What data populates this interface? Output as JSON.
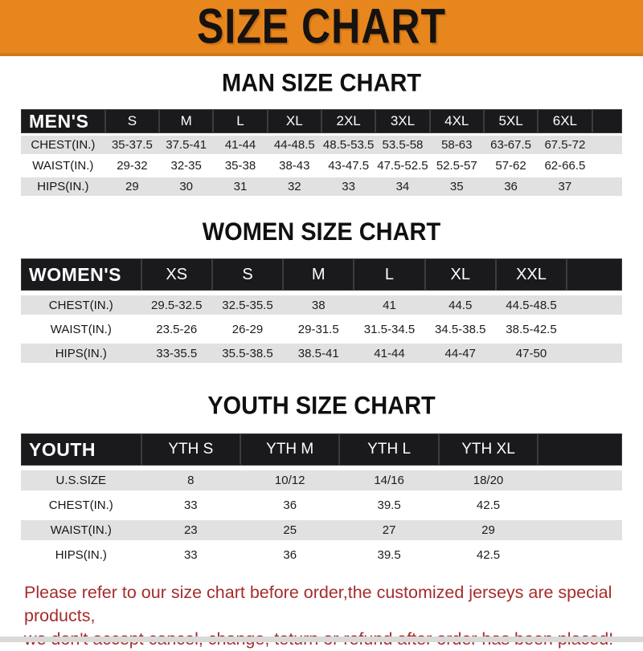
{
  "banner": {
    "title": "SIZE CHART",
    "bg_color": "#E8861E"
  },
  "colors": {
    "header_bar": "#1a1a1c",
    "row_stripe": "#E1E1E2",
    "notice_text": "#A62B2B"
  },
  "charts": [
    {
      "id": "men",
      "heading": "MAN SIZE CHART",
      "header_label": "MEN'S",
      "columns": [
        "S",
        "M",
        "L",
        "XL",
        "2XL",
        "3XL",
        "4XL",
        "5XL",
        "6XL"
      ],
      "rows": [
        {
          "label": "CHEST(IN.)",
          "values": [
            "35-37.5",
            "37.5-41",
            "41-44",
            "44-48.5",
            "48.5-53.5",
            "53.5-58",
            "58-63",
            "63-67.5",
            "67.5-72"
          ]
        },
        {
          "label": "WAIST(IN.)",
          "values": [
            "29-32",
            "32-35",
            "35-38",
            "38-43",
            "43-47.5",
            "47.5-52.5",
            "52.5-57",
            "57-62",
            "62-66.5"
          ]
        },
        {
          "label": "HIPS(IN.)",
          "values": [
            "29",
            "30",
            "31",
            "32",
            "33",
            "34",
            "35",
            "36",
            "37"
          ]
        }
      ]
    },
    {
      "id": "women",
      "heading": "WOMEN SIZE CHART",
      "header_label": "WOMEN'S",
      "columns": [
        "XS",
        "S",
        "M",
        "L",
        "XL",
        "XXL"
      ],
      "rows": [
        {
          "label": "CHEST(IN.)",
          "values": [
            "29.5-32.5",
            "32.5-35.5",
            "38",
            "41",
            "44.5",
            "44.5-48.5"
          ]
        },
        {
          "label": "WAIST(IN.)",
          "values": [
            "23.5-26",
            "26-29",
            "29-31.5",
            "31.5-34.5",
            "34.5-38.5",
            "38.5-42.5"
          ]
        },
        {
          "label": "HIPS(IN.)",
          "values": [
            "33-35.5",
            "35.5-38.5",
            "38.5-41",
            "41-44",
            "44-47",
            "47-50"
          ]
        }
      ]
    },
    {
      "id": "youth",
      "heading": "YOUTH SIZE CHART",
      "header_label": "YOUTH",
      "columns": [
        "YTH S",
        "YTH M",
        "YTH L",
        "YTH XL"
      ],
      "rows": [
        {
          "label": "U.S.SIZE",
          "values": [
            "8",
            "10/12",
            "14/16",
            "18/20"
          ]
        },
        {
          "label": "CHEST(IN.)",
          "values": [
            "33",
            "36",
            "39.5",
            "42.5"
          ]
        },
        {
          "label": "WAIST(IN.)",
          "values": [
            "23",
            "25",
            "27",
            "29"
          ]
        },
        {
          "label": "HIPS(IN.)",
          "values": [
            "33",
            "36",
            "39.5",
            "42.5"
          ]
        }
      ]
    }
  ],
  "notice": {
    "line1": "Please refer to our size chart before order,the customized jerseys are special products,",
    "line2": "we don't accept cancel, change, teturn or refund after order has been placed!"
  }
}
